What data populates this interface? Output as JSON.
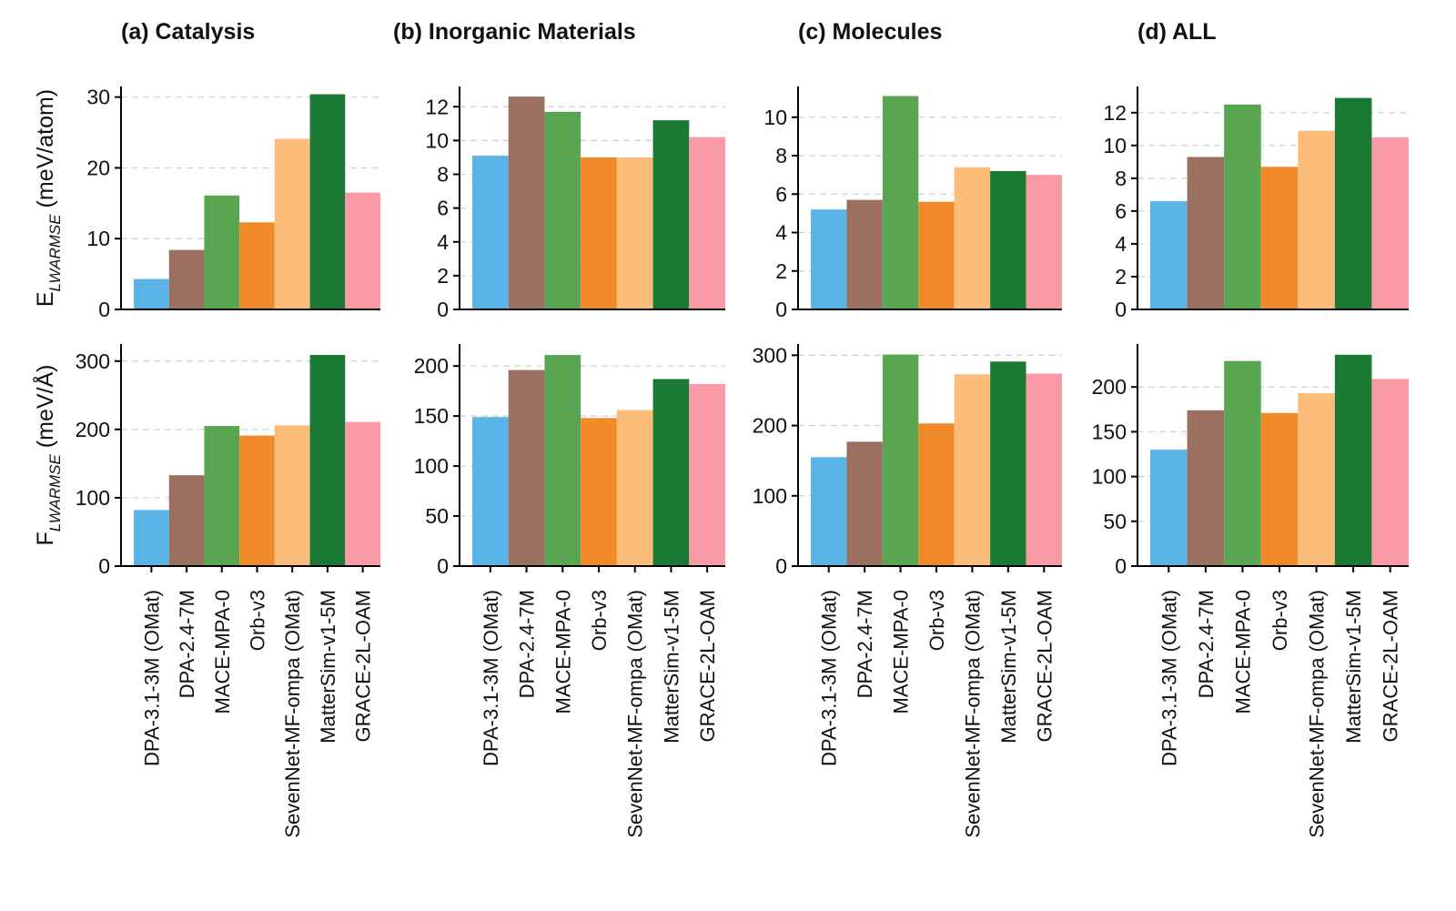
{
  "chart_data": {
    "type": "bar",
    "categories": [
      "DPA-3.1-3M (OMat)",
      "DPA-2.4-7M",
      "MACE-MPA-0",
      "Orb-v3",
      "SevenNet-MF-ompa (OMat)",
      "MatterSim-v1-5M",
      "GRACE-2L-OAM"
    ],
    "colors": [
      "#5ab4e8",
      "#9b7060",
      "#5aa552",
      "#f0892a",
      "#fdbd7a",
      "#1a7a34",
      "#fb9aa7"
    ],
    "rows": [
      {
        "key": "energy",
        "ylabel_main": "E",
        "ylabel_sub": "LWARMSE",
        "ylabel_unit": " (meV/atom)"
      },
      {
        "key": "force",
        "ylabel_main": "F",
        "ylabel_sub": "LWARMSE",
        "ylabel_unit": " (meV/Å)"
      }
    ],
    "panels": [
      {
        "title": "(a) Catalysis",
        "energy": {
          "values": [
            4.3,
            8.4,
            16.1,
            12.3,
            24.1,
            30.4,
            16.5
          ],
          "ylim": [
            0,
            31.5
          ],
          "ticks": [
            0,
            10,
            20,
            30
          ]
        },
        "force": {
          "values": [
            82,
            133,
            205,
            191,
            206,
            309,
            211
          ],
          "ylim": [
            0,
            325
          ],
          "ticks": [
            0,
            100,
            200,
            300
          ]
        }
      },
      {
        "title": "(b) Inorganic Materials",
        "energy": {
          "values": [
            9.1,
            12.6,
            11.7,
            9.0,
            9.0,
            11.2,
            10.2
          ],
          "ylim": [
            0,
            13.2
          ],
          "ticks": [
            0,
            2,
            4,
            6,
            8,
            10,
            12
          ]
        },
        "force": {
          "values": [
            149,
            196,
            211,
            148,
            156,
            187,
            182
          ],
          "ylim": [
            0,
            222
          ],
          "ticks": [
            0,
            50,
            100,
            150,
            200
          ]
        }
      },
      {
        "title": "(c) Molecules",
        "energy": {
          "values": [
            5.2,
            5.7,
            11.1,
            5.6,
            7.4,
            7.2,
            7.0
          ],
          "ylim": [
            0,
            11.6
          ],
          "ticks": [
            0,
            2,
            4,
            6,
            8,
            10
          ]
        },
        "force": {
          "values": [
            155,
            177,
            301,
            203,
            273,
            291,
            274
          ],
          "ylim": [
            0,
            316
          ],
          "ticks": [
            0,
            100,
            200,
            300
          ]
        }
      },
      {
        "title": "(d) ALL",
        "energy": {
          "values": [
            6.6,
            9.3,
            12.5,
            8.7,
            10.9,
            12.9,
            10.5
          ],
          "ylim": [
            0,
            13.6
          ],
          "ticks": [
            0,
            2,
            4,
            6,
            8,
            10,
            12
          ]
        },
        "force": {
          "values": [
            130,
            174,
            229,
            171,
            193,
            236,
            209
          ],
          "ylim": [
            0,
            248
          ],
          "ticks": [
            0,
            50,
            100,
            150,
            200
          ]
        }
      }
    ]
  }
}
